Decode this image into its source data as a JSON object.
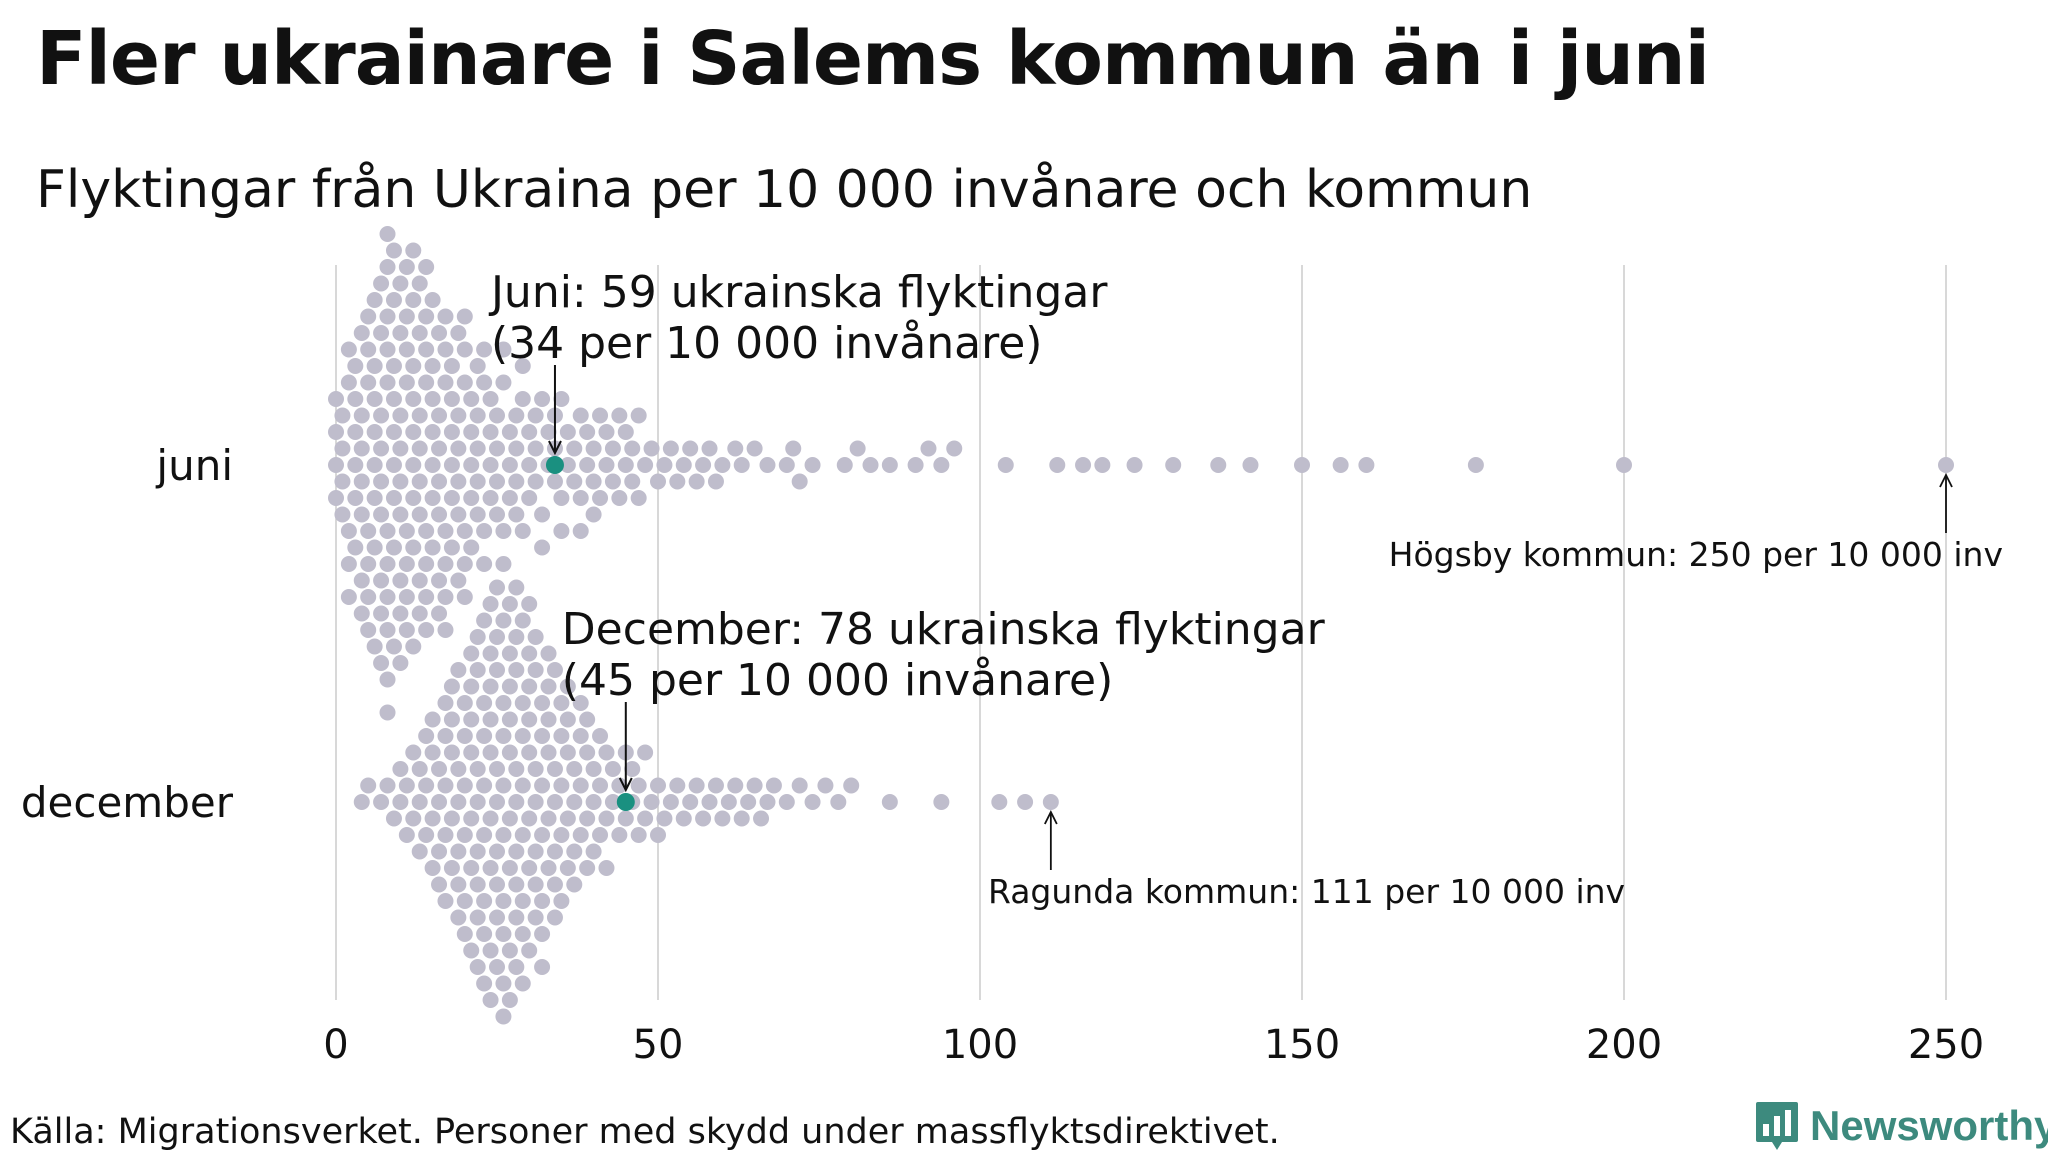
{
  "title": "Fler ukrainare i Salems kommun än i juni",
  "subtitle": "Flyktingar från Ukraina per 10 000 invånare och kommun",
  "source": "Källa: Migrationsverket. Personer med skydd under massflyktsdirektivet.",
  "brand": "Newsworthy",
  "colors": {
    "dot": "#bfbdcc",
    "highlight": "#1a9080",
    "grid": "#cccccc",
    "brand": "#3d8a7e"
  },
  "chart_data": {
    "type": "scatter",
    "subtype": "beeswarm",
    "xlim": [
      0,
      250
    ],
    "x_ticks": [
      {
        "value": 0,
        "label": "0"
      },
      {
        "value": 50,
        "label": "50"
      },
      {
        "value": 100,
        "label": "100"
      },
      {
        "value": 150,
        "label": "150"
      },
      {
        "value": 200,
        "label": "200"
      },
      {
        "value": 250,
        "label": "250"
      }
    ],
    "grid": true,
    "categories": [
      "juni",
      "december"
    ],
    "series": [
      {
        "category": "juni",
        "values": [
          0,
          0,
          0,
          0,
          1,
          1,
          1,
          1,
          2,
          2,
          2,
          2,
          2,
          3,
          3,
          3,
          3,
          3,
          3,
          4,
          4,
          4,
          4,
          4,
          4,
          4,
          5,
          5,
          5,
          5,
          5,
          5,
          5,
          6,
          6,
          6,
          6,
          6,
          6,
          6,
          6,
          7,
          7,
          7,
          7,
          7,
          7,
          7,
          7,
          7,
          8,
          8,
          8,
          8,
          8,
          8,
          8,
          8,
          8,
          8,
          8,
          9,
          9,
          9,
          9,
          9,
          9,
          9,
          9,
          9,
          10,
          10,
          10,
          10,
          10,
          10,
          10,
          10,
          10,
          11,
          11,
          11,
          11,
          11,
          11,
          11,
          11,
          12,
          12,
          12,
          12,
          12,
          12,
          12,
          12,
          12,
          13,
          13,
          13,
          13,
          13,
          13,
          13,
          13,
          14,
          14,
          14,
          14,
          14,
          14,
          14,
          14,
          15,
          15,
          15,
          15,
          15,
          15,
          15,
          16,
          16,
          16,
          16,
          16,
          16,
          16,
          17,
          17,
          17,
          17,
          17,
          17,
          17,
          18,
          18,
          18,
          18,
          18,
          18,
          19,
          19,
          19,
          19,
          19,
          19,
          20,
          20,
          20,
          20,
          20,
          20,
          21,
          21,
          21,
          21,
          21,
          22,
          22,
          22,
          22,
          22,
          23,
          23,
          23,
          23,
          24,
          24,
          24,
          24,
          25,
          25,
          25,
          25,
          26,
          26,
          26,
          26,
          27,
          27,
          27,
          28,
          28,
          28,
          28,
          29,
          29,
          29,
          30,
          30,
          30,
          31,
          31,
          31,
          32,
          32,
          32,
          33,
          33,
          34,
          34,
          34,
          35,
          35,
          35,
          36,
          36,
          37,
          37,
          38,
          38,
          38,
          39,
          39,
          40,
          40,
          40,
          41,
          41,
          42,
          42,
          43,
          43,
          44,
          44,
          45,
          45,
          46,
          46,
          47,
          47,
          48,
          49,
          50,
          51,
          52,
          53,
          54,
          55,
          56,
          57,
          58,
          59,
          60,
          62,
          63,
          65,
          67,
          70,
          71,
          72,
          74,
          79,
          81,
          83,
          86,
          90,
          92,
          94,
          96,
          104,
          112,
          116,
          119,
          124,
          130,
          137,
          142,
          150,
          156,
          160,
          177,
          200,
          250
        ],
        "highlight": {
          "value": 34,
          "label_line1": "Juni: 59 ukrainska flyktingar",
          "label_line2": "(34 per 10 000 invånare)"
        },
        "max_annotation": {
          "value": 250,
          "label": "Högsby kommun: 250 per 10 000 inv"
        }
      },
      {
        "category": "december",
        "values": [
          4,
          5,
          7,
          8,
          9,
          10,
          10,
          11,
          11,
          12,
          12,
          13,
          13,
          13,
          14,
          14,
          14,
          15,
          15,
          15,
          15,
          16,
          16,
          16,
          16,
          17,
          17,
          17,
          17,
          17,
          18,
          18,
          18,
          18,
          18,
          19,
          19,
          19,
          19,
          19,
          19,
          20,
          20,
          20,
          20,
          20,
          20,
          21,
          21,
          21,
          21,
          21,
          21,
          21,
          22,
          22,
          22,
          22,
          22,
          22,
          22,
          22,
          23,
          23,
          23,
          23,
          23,
          23,
          23,
          23,
          24,
          24,
          24,
          24,
          24,
          24,
          24,
          24,
          24,
          25,
          25,
          25,
          25,
          25,
          25,
          25,
          25,
          25,
          26,
          26,
          26,
          26,
          26,
          26,
          26,
          26,
          26,
          27,
          27,
          27,
          27,
          27,
          27,
          27,
          27,
          27,
          28,
          28,
          28,
          28,
          28,
          28,
          28,
          28,
          28,
          29,
          29,
          29,
          29,
          29,
          29,
          29,
          29,
          30,
          30,
          30,
          30,
          30,
          30,
          30,
          30,
          31,
          31,
          31,
          31,
          31,
          31,
          31,
          32,
          32,
          32,
          32,
          32,
          32,
          32,
          33,
          33,
          33,
          33,
          33,
          33,
          34,
          34,
          34,
          34,
          34,
          34,
          35,
          35,
          35,
          35,
          35,
          36,
          36,
          36,
          36,
          36,
          37,
          37,
          37,
          37,
          38,
          38,
          38,
          38,
          39,
          39,
          39,
          39,
          40,
          40,
          40,
          41,
          41,
          41,
          42,
          42,
          42,
          43,
          43,
          44,
          44,
          45,
          45,
          46,
          46,
          47,
          47,
          48,
          48,
          49,
          50,
          50,
          51,
          52,
          53,
          54,
          55,
          56,
          57,
          58,
          59,
          60,
          61,
          62,
          63,
          64,
          65,
          66,
          67,
          68,
          70,
          72,
          74,
          76,
          78,
          80,
          86,
          94,
          103,
          107,
          111
        ],
        "highlight": {
          "value": 45,
          "label_line1": "December: 78 ukrainska flyktingar",
          "label_line2": "(45 per 10 000 invånare)"
        },
        "max_annotation": {
          "value": 111,
          "label": "Ragunda kommun: 111 per 10 000 inv"
        }
      }
    ]
  }
}
